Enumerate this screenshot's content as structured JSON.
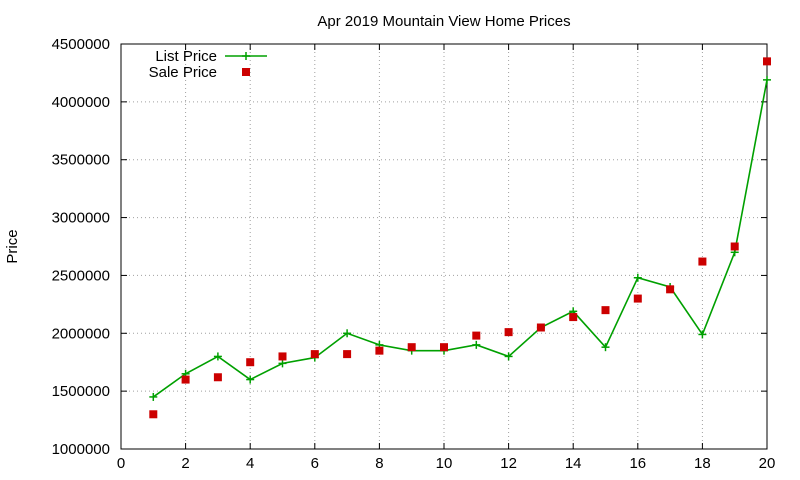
{
  "chart_data": {
    "type": "line",
    "title": "Apr 2019 Mountain View Home Prices",
    "xlabel": "",
    "ylabel": "Price",
    "xlim": [
      0,
      20
    ],
    "ylim": [
      1000000,
      4500000
    ],
    "x_ticks": [
      "0",
      "2",
      "4",
      "6",
      "8",
      "10",
      "12",
      "14",
      "16",
      "18",
      "20"
    ],
    "y_ticks": [
      "1000000",
      "1500000",
      "2000000",
      "2500000",
      "3000000",
      "3500000",
      "4000000",
      "4500000"
    ],
    "grid": true,
    "legend_position": "top-left",
    "series": [
      {
        "name": "List Price",
        "style": "line-with-plus-markers",
        "color": "#00a000",
        "x": [
          1,
          2,
          3,
          4,
          5,
          6,
          7,
          8,
          9,
          10,
          11,
          12,
          13,
          14,
          15,
          16,
          17,
          18,
          19,
          20
        ],
        "y": [
          1450000,
          1650000,
          1800000,
          1600000,
          1740000,
          1790000,
          2000000,
          1900000,
          1850000,
          1850000,
          1900000,
          1800000,
          2050000,
          2190000,
          1880000,
          2480000,
          2400000,
          1990000,
          2700000,
          4190000
        ]
      },
      {
        "name": "Sale Price",
        "style": "square-markers",
        "color": "#cc0000",
        "x": [
          1,
          2,
          3,
          4,
          5,
          6,
          7,
          8,
          9,
          10,
          11,
          12,
          13,
          14,
          15,
          16,
          17,
          18,
          19,
          20
        ],
        "y": [
          1300000,
          1600000,
          1620000,
          1750000,
          1800000,
          1820000,
          1820000,
          1850000,
          1880000,
          1880000,
          1980000,
          2010000,
          2050000,
          2140000,
          2200000,
          2300000,
          2380000,
          2620000,
          2750000,
          4350000
        ]
      }
    ]
  }
}
